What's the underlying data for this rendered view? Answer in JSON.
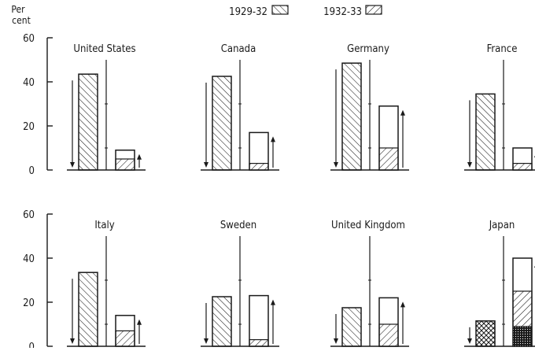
{
  "chart_data": {
    "type": "bar",
    "ylabel": "Per cent",
    "ylim": [
      0,
      60
    ],
    "yticks": [
      0,
      20,
      40,
      60
    ],
    "legend": {
      "placement": "top",
      "items": [
        {
          "label": "1929-32",
          "pattern": "diagonal-hatch"
        },
        {
          "label": "1932-33",
          "pattern": "reverse-diagonal-hatch"
        }
      ]
    },
    "panels": [
      {
        "country": "United States",
        "fall_1929_32": 43.5,
        "rise_1932_33": {
          "total": 9,
          "inner": 5
        }
      },
      {
        "country": "Canada",
        "fall_1929_32": 42.5,
        "rise_1932_33": {
          "total": 17,
          "inner": 3
        }
      },
      {
        "country": "Germany",
        "fall_1929_32": 48.5,
        "rise_1932_33": {
          "total": 29,
          "inner": 10
        }
      },
      {
        "country": "France",
        "fall_1929_32": 34.5,
        "rise_1932_33": {
          "total": 10,
          "inner": 3
        }
      },
      {
        "country": "Italy",
        "fall_1929_32": 33.5,
        "rise_1932_33": {
          "total": 14,
          "inner": 7
        }
      },
      {
        "country": "Sweden",
        "fall_1929_32": 22.5,
        "rise_1932_33": {
          "total": 23,
          "inner": 3
        }
      },
      {
        "country": "United Kingdom",
        "fall_1929_32": 17.5,
        "rise_1932_33": {
          "total": 22,
          "inner": 10
        }
      },
      {
        "country": "Japan",
        "fall_1929_32": 11.5,
        "rise_1932_33": {
          "total": 40,
          "inner": 25,
          "inner_dark": 9
        }
      }
    ],
    "color": "#1a1a1a"
  }
}
